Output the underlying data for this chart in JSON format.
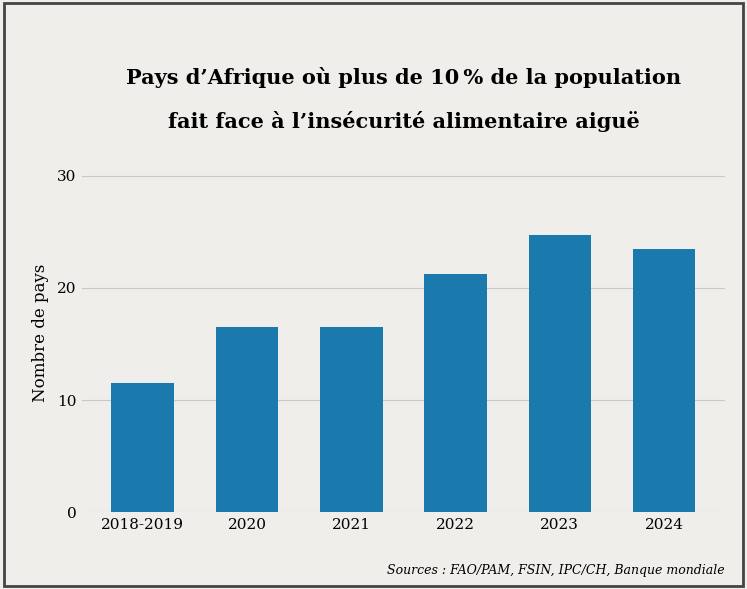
{
  "title_line1": "Pays d’Afrique où plus de 10 % de la population",
  "title_line2": "fait face à l’insécurité alimentaire aiguë",
  "categories": [
    "2018-2019",
    "2020",
    "2021",
    "2022",
    "2023",
    "2024"
  ],
  "values": [
    11.5,
    16.5,
    16.5,
    21.2,
    24.7,
    23.5
  ],
  "bar_color": "#1a7aad",
  "ylabel": "Nombre de pays",
  "yticks": [
    0,
    10,
    20,
    30
  ],
  "ylim": [
    0,
    32
  ],
  "source_text": "Sources : FAO/PAM, FSIN, IPC/CH, Banque mondiale",
  "background_color": "#f0eeea",
  "grid_color": "#c8c8c8",
  "title_fontsize": 15,
  "axis_label_fontsize": 12,
  "tick_fontsize": 11,
  "source_fontsize": 9
}
